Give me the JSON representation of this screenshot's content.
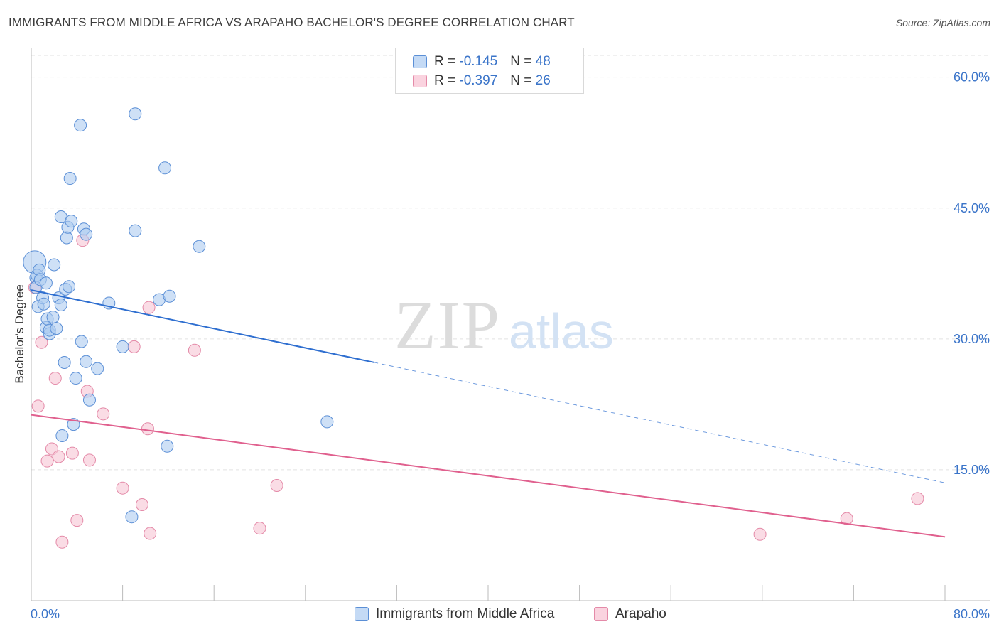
{
  "title": "IMMIGRANTS FROM MIDDLE AFRICA VS ARAPAHO BACHELOR'S DEGREE CORRELATION CHART",
  "source": "Source: ZipAtlas.com",
  "watermark": {
    "zip": "ZIP",
    "atlas": "atlas"
  },
  "legend": {
    "series1": {
      "r_label": "R = ",
      "r_value": "-0.145",
      "n_label": "N = ",
      "n_value": "48"
    },
    "series2": {
      "r_label": "R = ",
      "r_value": "-0.397",
      "n_label": "N = ",
      "n_value": "26"
    }
  },
  "colors": {
    "blue_fill": "#aecbf0",
    "blue_stroke": "#5b8fd6",
    "blue_line": "#2f6fd0",
    "pink_fill": "#f6c4d3",
    "pink_stroke": "#e48aa8",
    "pink_line": "#e0608e",
    "axis_label": "#3a74c9",
    "grid": "#e2e2e2"
  },
  "chart_data": {
    "type": "scatter",
    "title": "IMMIGRANTS FROM MIDDLE AFRICA VS ARAPAHO BACHELOR'S DEGREE CORRELATION CHART",
    "xlabel": "",
    "ylabel": "Bachelor's Degree",
    "xlim": [
      0,
      80
    ],
    "ylim": [
      0,
      62.5
    ],
    "x_tick_labels": [
      "0.0%",
      "80.0%"
    ],
    "y_ticks": [
      15,
      30,
      45,
      60
    ],
    "y_tick_labels": [
      "15.0%",
      "30.0%",
      "45.0%",
      "60.0%"
    ],
    "grid": true,
    "series": [
      {
        "name": "Immigrants from Middle Africa",
        "color": "blue",
        "points": [
          [
            0.3,
            38.8,
            3
          ],
          [
            0.4,
            37.0,
            1
          ],
          [
            0.4,
            35.9,
            1
          ],
          [
            0.5,
            37.3,
            1
          ],
          [
            0.6,
            33.7,
            1
          ],
          [
            0.7,
            37.9,
            1
          ],
          [
            0.8,
            36.8,
            1
          ],
          [
            1.0,
            34.7,
            1
          ],
          [
            1.1,
            34.0,
            1
          ],
          [
            1.3,
            36.4,
            1
          ],
          [
            1.3,
            31.3,
            1
          ],
          [
            1.4,
            32.3,
            1
          ],
          [
            1.6,
            30.6,
            1
          ],
          [
            1.6,
            31.0,
            1
          ],
          [
            1.9,
            32.5,
            1
          ],
          [
            2.0,
            38.5,
            1
          ],
          [
            2.2,
            31.2,
            1
          ],
          [
            2.4,
            34.7,
            1
          ],
          [
            2.6,
            44.0,
            1
          ],
          [
            2.6,
            33.9,
            1
          ],
          [
            2.7,
            18.9,
            1
          ],
          [
            2.9,
            27.3,
            1
          ],
          [
            3.0,
            35.7,
            1
          ],
          [
            3.1,
            41.6,
            1
          ],
          [
            3.2,
            42.8,
            1
          ],
          [
            3.3,
            36.0,
            1
          ],
          [
            3.4,
            48.4,
            1
          ],
          [
            3.5,
            43.5,
            1
          ],
          [
            3.7,
            20.2,
            1
          ],
          [
            3.9,
            25.5,
            1
          ],
          [
            4.3,
            54.5,
            1
          ],
          [
            4.4,
            29.7,
            1
          ],
          [
            4.6,
            42.6,
            1
          ],
          [
            4.8,
            42.0,
            1
          ],
          [
            4.8,
            27.4,
            1
          ],
          [
            5.1,
            23.0,
            1
          ],
          [
            5.8,
            26.6,
            1
          ],
          [
            6.8,
            34.1,
            1
          ],
          [
            8.0,
            29.1,
            1
          ],
          [
            8.8,
            9.6,
            1
          ],
          [
            9.1,
            55.8,
            1
          ],
          [
            9.1,
            42.4,
            1
          ],
          [
            11.2,
            34.5,
            1
          ],
          [
            11.7,
            49.6,
            1
          ],
          [
            11.9,
            17.7,
            1
          ],
          [
            12.1,
            34.9,
            1
          ],
          [
            14.7,
            40.6,
            1
          ],
          [
            25.9,
            20.5,
            1
          ]
        ]
      },
      {
        "name": "Arapaho",
        "color": "pink",
        "points": [
          [
            0.3,
            35.9,
            1
          ],
          [
            0.6,
            22.3,
            1
          ],
          [
            0.9,
            29.6,
            1
          ],
          [
            1.4,
            16.0,
            1
          ],
          [
            1.8,
            17.4,
            1
          ],
          [
            2.1,
            25.5,
            1
          ],
          [
            2.4,
            16.5,
            1
          ],
          [
            2.7,
            6.7,
            1
          ],
          [
            3.6,
            16.9,
            1
          ],
          [
            4.0,
            9.2,
            1
          ],
          [
            4.5,
            41.3,
            1
          ],
          [
            4.9,
            24.0,
            1
          ],
          [
            5.1,
            16.1,
            1
          ],
          [
            6.3,
            21.4,
            1
          ],
          [
            8.0,
            12.9,
            1
          ],
          [
            9.0,
            29.1,
            1
          ],
          [
            9.7,
            11.0,
            1
          ],
          [
            10.2,
            19.7,
            1
          ],
          [
            10.3,
            33.6,
            1
          ],
          [
            10.4,
            7.7,
            1
          ],
          [
            14.3,
            28.7,
            1
          ],
          [
            20.0,
            8.3,
            1
          ],
          [
            21.5,
            13.2,
            1
          ],
          [
            63.8,
            7.6,
            1
          ],
          [
            71.4,
            9.4,
            1
          ],
          [
            77.6,
            11.7,
            1
          ]
        ]
      }
    ],
    "trendlines": [
      {
        "series": "Immigrants from Middle Africa",
        "x_start": 0,
        "y_start": 35.6,
        "x_solid_end": 30,
        "x_end": 80,
        "y_end": 13.5
      },
      {
        "series": "Arapaho",
        "x_start": 0,
        "y_start": 21.3,
        "x_end": 80,
        "y_end": 7.3
      }
    ]
  }
}
